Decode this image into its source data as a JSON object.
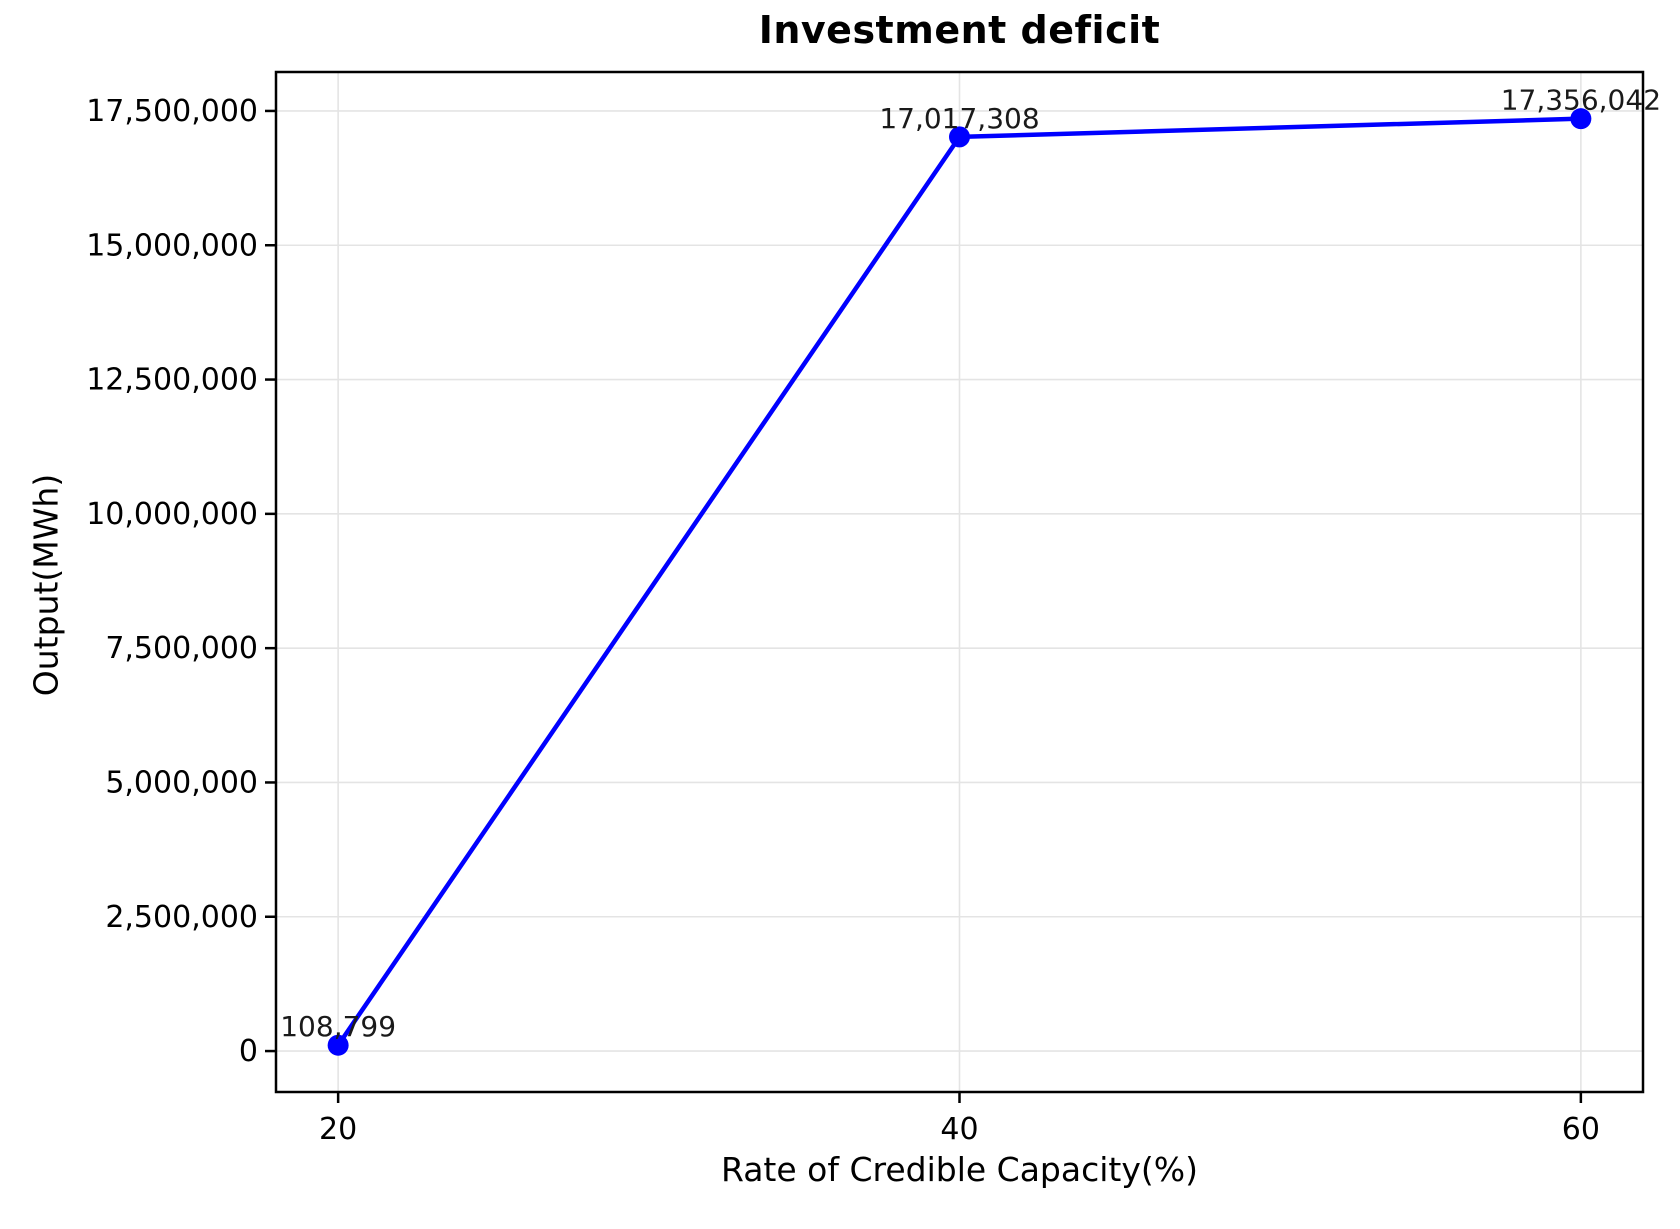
{
  "chart_data": {
    "type": "line",
    "title": "Investment deficit",
    "xlabel": "Rate of Credible Capacity(%)",
    "ylabel": "Output(MWh)",
    "x": [
      20,
      40,
      60
    ],
    "y": [
      108799,
      17017308,
      17356042
    ],
    "point_labels": [
      "108,799",
      "17,017,308",
      "17,356,042"
    ],
    "xticks": [
      20,
      40,
      60
    ],
    "xtick_labels": [
      "20",
      "40",
      "60"
    ],
    "yticks": [
      0,
      2500000,
      5000000,
      7500000,
      10000000,
      12500000,
      15000000,
      17500000
    ],
    "ytick_labels": [
      "0",
      "2,500,000",
      "5,000,000",
      "7,500,000",
      "10,000,000",
      "12,500,000",
      "15,000,000",
      "17,500,000"
    ],
    "xlim": [
      18,
      62
    ],
    "ylim": [
      -762000,
      18225000
    ],
    "grid": true,
    "legend": false,
    "line_color": "#0000ff",
    "marker": "circle",
    "grid_color": "#e4e4e4",
    "spine_color": "#000000",
    "background_color": "#ffffff"
  }
}
